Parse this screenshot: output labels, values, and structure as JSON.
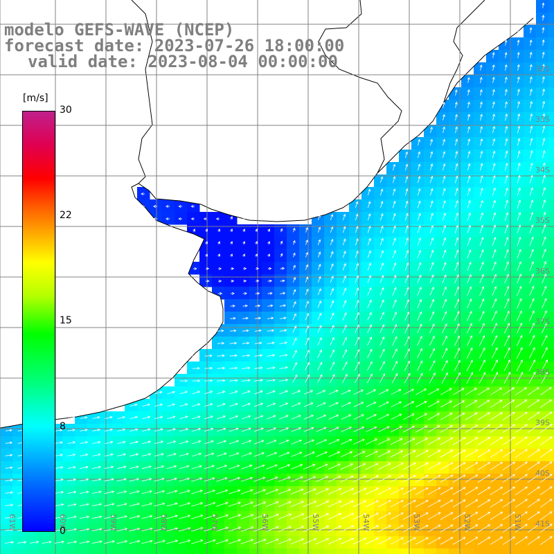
{
  "title": {
    "line1": "modelo GEFS-WAVE (NCEP)",
    "line2": "forecast date: 2023-07-26 18:00:00",
    "line3": "valid date: 2023-08-04 00:00:00"
  },
  "colorbar": {
    "unit": "[m/s]",
    "min": 0,
    "max": 30,
    "tick_labels": [
      "30",
      "22",
      "15",
      "8",
      "0"
    ],
    "tick_values": [
      30,
      22,
      15,
      8,
      0
    ],
    "colors_low_to_high": [
      "#0000ff",
      "#00b4ff",
      "#00ffff",
      "#00ff00",
      "#ffff00",
      "#ff6000",
      "#ff0000",
      "#c0208c"
    ]
  },
  "map": {
    "land_color": "#ffffff",
    "grid_color": "#808080",
    "coast_color": "#000000",
    "lat_labels": [
      "32S",
      "33S",
      "34S",
      "35S",
      "36S",
      "37S",
      "38S",
      "39S",
      "40S",
      "41S"
    ],
    "lon_labels": [
      "61W",
      "60W",
      "59W",
      "58W",
      "57W",
      "56W",
      "55W",
      "54W",
      "53W",
      "52W",
      "51W"
    ]
  }
}
